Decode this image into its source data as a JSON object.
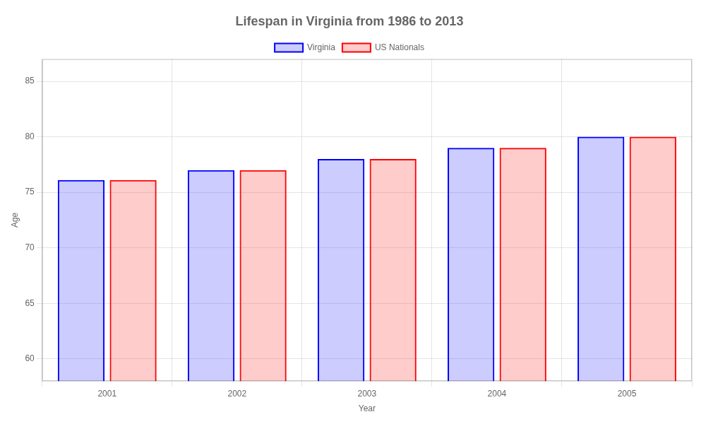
{
  "chart_data": {
    "type": "bar",
    "title": "Lifespan in Virginia from 1986 to 2013",
    "x_label": "Year",
    "y_label": "Age",
    "categories": [
      "2001",
      "2002",
      "2003",
      "2004",
      "2005"
    ],
    "series": [
      {
        "name": "Virginia",
        "color": "#0000ff",
        "values": [
          76.1,
          77.0,
          78.0,
          79.0,
          80.0
        ]
      },
      {
        "name": "US Nationals",
        "color": "#ff0000",
        "values": [
          76.1,
          77.0,
          78.0,
          79.0,
          80.0
        ]
      }
    ],
    "ylim": [
      58,
      87
    ],
    "yticks": [
      60,
      65,
      70,
      75,
      80,
      85
    ],
    "grid": true,
    "legend": "top"
  }
}
